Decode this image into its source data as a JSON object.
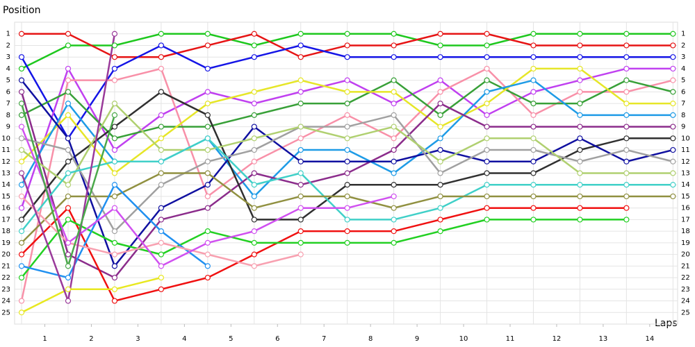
{
  "chart_data": {
    "type": "line",
    "y_title": "Position",
    "x_title": "Laps",
    "x": [
      0,
      1,
      2,
      3,
      4,
      5,
      6,
      7,
      8,
      9,
      10,
      11,
      12,
      13,
      14
    ],
    "xlim": [
      -0.15,
      14.1
    ],
    "xticks": [
      {
        "value": 0.5,
        "label": "1"
      },
      {
        "value": 1.5,
        "label": "2"
      },
      {
        "value": 2.5,
        "label": "3"
      },
      {
        "value": 3.5,
        "label": "4"
      },
      {
        "value": 4.5,
        "label": "5"
      },
      {
        "value": 5.5,
        "label": "6"
      },
      {
        "value": 6.5,
        "label": "7"
      },
      {
        "value": 7.5,
        "label": "8"
      },
      {
        "value": 8.5,
        "label": "9"
      },
      {
        "value": 9.5,
        "label": "10"
      },
      {
        "value": 10.5,
        "label": "11"
      },
      {
        "value": 11.5,
        "label": "12"
      },
      {
        "value": 12.5,
        "label": "13"
      },
      {
        "value": 13.5,
        "label": "14"
      }
    ],
    "ylim": [
      0,
      26
    ],
    "y_inverted": true,
    "yticks": [
      1,
      2,
      3,
      4,
      5,
      6,
      7,
      8,
      9,
      10,
      11,
      12,
      13,
      14,
      15,
      16,
      17,
      18,
      19,
      20,
      21,
      22,
      23,
      24,
      25
    ],
    "grid": true,
    "series": [
      {
        "color": "#1ec81e",
        "values": [
          4,
          2,
          2,
          1,
          1,
          2,
          1,
          1,
          1,
          2,
          2,
          1,
          1,
          1,
          1
        ]
      },
      {
        "color": "#e61414",
        "values": [
          1,
          1,
          3,
          3,
          2,
          1,
          3,
          2,
          2,
          1,
          1,
          2,
          2,
          2,
          2
        ]
      },
      {
        "color": "#1414e6",
        "values": [
          3,
          10,
          4,
          2,
          4,
          3,
          2,
          3,
          3,
          3,
          3,
          3,
          3,
          3,
          3
        ]
      },
      {
        "color": "#c040f0",
        "values": [
          16,
          4,
          11,
          8,
          6,
          7,
          6,
          5,
          7,
          5,
          8,
          6,
          5,
          4,
          4
        ]
      },
      {
        "color": "#f890a8",
        "values": [
          24,
          5,
          5,
          4,
          15,
          12,
          10,
          8,
          10,
          6,
          4,
          8,
          6,
          6,
          5
        ]
      },
      {
        "color": "#38a038",
        "values": [
          8,
          6,
          10,
          9,
          9,
          8,
          7,
          7,
          5,
          8,
          5,
          7,
          7,
          5,
          6
        ]
      },
      {
        "color": "#e6e628",
        "values": [
          12,
          8,
          13,
          10,
          7,
          6,
          5,
          6,
          6,
          9,
          7,
          4,
          4,
          7,
          7
        ]
      },
      {
        "color": "#1e9be6",
        "values": [
          14,
          7,
          12,
          12,
          10,
          15,
          11,
          11,
          13,
          10,
          6,
          5,
          8,
          8,
          8
        ]
      },
      {
        "color": "#8b2c8b",
        "values": [
          6,
          20,
          22,
          17,
          16,
          13,
          14,
          13,
          11,
          7,
          9,
          9,
          9,
          9,
          9
        ]
      },
      {
        "color": "#303030",
        "values": [
          17,
          12,
          9,
          6,
          8,
          17,
          17,
          14,
          14,
          14,
          13,
          13,
          11,
          10,
          10
        ]
      },
      {
        "color": "#1010a0",
        "values": [
          5,
          10,
          21,
          16,
          14,
          9,
          12,
          12,
          12,
          11,
          12,
          12,
          10,
          12,
          11
        ]
      },
      {
        "color": "#a0a0a0",
        "values": [
          10,
          11,
          18,
          14,
          12,
          11,
          9,
          9,
          8,
          13,
          11,
          11,
          12,
          11,
          12
        ]
      },
      {
        "color": "#b0d070",
        "values": [
          11,
          14,
          7,
          11,
          11,
          10,
          9,
          10,
          9,
          12,
          10,
          10,
          13,
          13,
          13
        ]
      },
      {
        "color": "#40d0c8",
        "values": [
          18,
          13,
          12,
          12,
          10,
          14,
          13,
          17,
          17,
          16,
          14,
          14,
          14,
          14,
          14
        ]
      },
      {
        "color": "#909040",
        "values": [
          19,
          15,
          15,
          13,
          13,
          16,
          15,
          15,
          16,
          15,
          15,
          15,
          15,
          15,
          15
        ]
      },
      {
        "color": "#f01010",
        "values": [
          20,
          16,
          24,
          23,
          22,
          20,
          18,
          18,
          18,
          17,
          16,
          16,
          16,
          16,
          null
        ]
      },
      {
        "color": "#22d022",
        "values": [
          22,
          17,
          19,
          20,
          18,
          19,
          19,
          19,
          19,
          18,
          17,
          17,
          17,
          17,
          null
        ]
      },
      {
        "color": "#2090f0",
        "values": [
          21,
          22,
          14,
          18,
          21,
          null,
          null,
          null,
          null,
          null,
          null,
          null,
          null,
          null,
          null
        ]
      },
      {
        "color": "#f8a0b0",
        "values": [
          15,
          19,
          20,
          19,
          20,
          21,
          20,
          null,
          null,
          null,
          null,
          null,
          null,
          null,
          null
        ]
      },
      {
        "color": "#d050f0",
        "values": [
          9,
          19,
          16,
          21,
          19,
          18,
          16,
          16,
          15,
          null,
          null,
          null,
          null,
          null,
          null
        ]
      },
      {
        "color": "#e8e820",
        "values": [
          25,
          23,
          23,
          22,
          null,
          null,
          null,
          null,
          null,
          null,
          null,
          null,
          null,
          null,
          null
        ]
      },
      {
        "color": "#9a3a9a",
        "values": [
          13,
          24,
          1,
          null,
          null,
          null,
          null,
          null,
          null,
          null,
          null,
          null,
          null,
          null,
          null
        ]
      },
      {
        "color": "#4aa84a",
        "values": [
          7,
          21,
          8,
          null,
          null,
          null,
          null,
          null,
          null,
          null,
          null,
          null,
          null,
          null,
          null
        ]
      }
    ]
  }
}
